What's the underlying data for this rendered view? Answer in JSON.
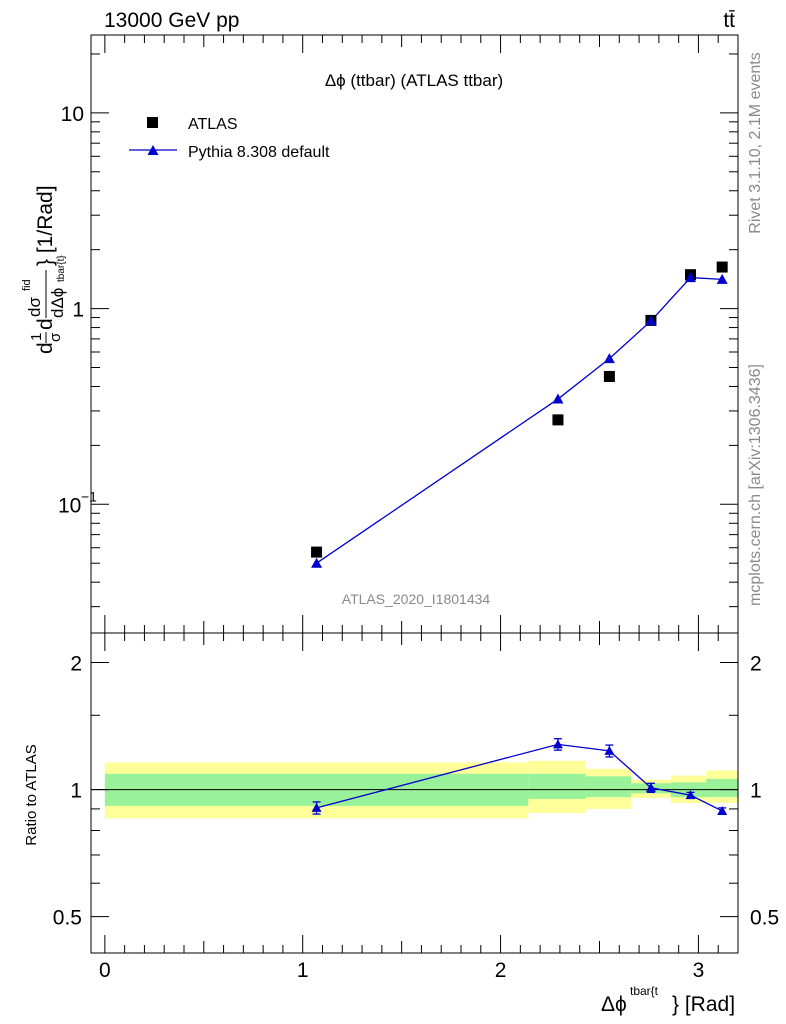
{
  "header": {
    "left": "13000 GeV pp",
    "right": "tt̄"
  },
  "side_labels": {
    "rivet": "Rivet 3.1.10,  2.1M events",
    "mcplots": "mcplots.cern.ch [arXiv:1306.3436]"
  },
  "watermark": "ATLAS_2020_I1801434",
  "chart_data": [
    {
      "type": "scatter",
      "title": "Δϕ (ttbar) (ATLAS ttbar)",
      "ylabel_parts": {
        "d": "d",
        "one": "1",
        "sigma": "σ",
        "dsig": "dσ",
        "fid": "fid",
        "dphi": "dΔϕ",
        "sub": "tbar{t}",
        "unit": "} [1/Rad]"
      },
      "yscale": "log",
      "ylim": [
        0.022,
        25
      ],
      "xlim": [
        -0.07,
        3.2
      ],
      "ytick_labels": [
        {
          "value": 10,
          "label": "10"
        },
        {
          "value": 1,
          "label": "1"
        },
        {
          "value": 0.1,
          "label": "10",
          "exp": "−1"
        }
      ],
      "legend_position": "top-left",
      "series": [
        {
          "name": "ATLAS",
          "color": "#000000",
          "marker": "square",
          "x": [
            1.07,
            2.29,
            2.55,
            2.76,
            2.96,
            3.12
          ],
          "y": [
            0.057,
            0.27,
            0.45,
            0.87,
            1.49,
            1.63
          ]
        },
        {
          "name": "Pythia 8.308 default",
          "color": "#0000cc",
          "marker": "triangle",
          "x": [
            1.07,
            2.29,
            2.55,
            2.76,
            2.96,
            3.12
          ],
          "y": [
            0.05,
            0.345,
            0.555,
            0.865,
            1.44,
            1.41
          ]
        }
      ]
    },
    {
      "type": "line",
      "ylabel": "Ratio to ATLAS",
      "xlabel_parts": {
        "main": "Δϕ",
        "sup": "tbar{t",
        "unit": "} [Rad]"
      },
      "ylim": [
        0.41,
        2.35
      ],
      "xlim": [
        -0.07,
        3.2
      ],
      "xtick_labels": [
        {
          "value": 0,
          "label": "0"
        },
        {
          "value": 1,
          "label": "1"
        },
        {
          "value": 2,
          "label": "2"
        },
        {
          "value": 3,
          "label": "3"
        }
      ],
      "ytick_labels": [
        {
          "value": 2,
          "label": "2"
        },
        {
          "value": 1,
          "label": "1"
        },
        {
          "value": 0.5,
          "label": "0.5"
        }
      ],
      "bands": {
        "bins": [
          [
            0.0,
            2.14
          ],
          [
            2.14,
            2.43
          ],
          [
            2.43,
            2.66
          ],
          [
            2.66,
            2.86
          ],
          [
            2.86,
            3.04
          ],
          [
            3.04,
            3.2
          ]
        ],
        "inner": [
          [
            0.915,
            1.09
          ],
          [
            0.95,
            1.09
          ],
          [
            0.96,
            1.075
          ],
          [
            0.98,
            1.035
          ],
          [
            0.96,
            1.04
          ],
          [
            0.96,
            1.06
          ]
        ],
        "outer": [
          [
            0.855,
            1.16
          ],
          [
            0.88,
            1.17
          ],
          [
            0.9,
            1.12
          ],
          [
            0.955,
            1.055
          ],
          [
            0.93,
            1.08
          ],
          [
            0.93,
            1.11
          ]
        ],
        "inner_color": "#99f299",
        "outer_color": "#ffff99"
      },
      "series": [
        {
          "name": "Pythia 8.308 default",
          "color": "#0000cc",
          "x": [
            1.07,
            2.29,
            2.55,
            2.76,
            2.96,
            3.12
          ],
          "y": [
            0.905,
            1.28,
            1.235,
            1.01,
            0.97,
            0.89
          ],
          "err": [
            0.03,
            0.04,
            0.04,
            0.025,
            0.015,
            0.015
          ]
        }
      ]
    }
  ]
}
